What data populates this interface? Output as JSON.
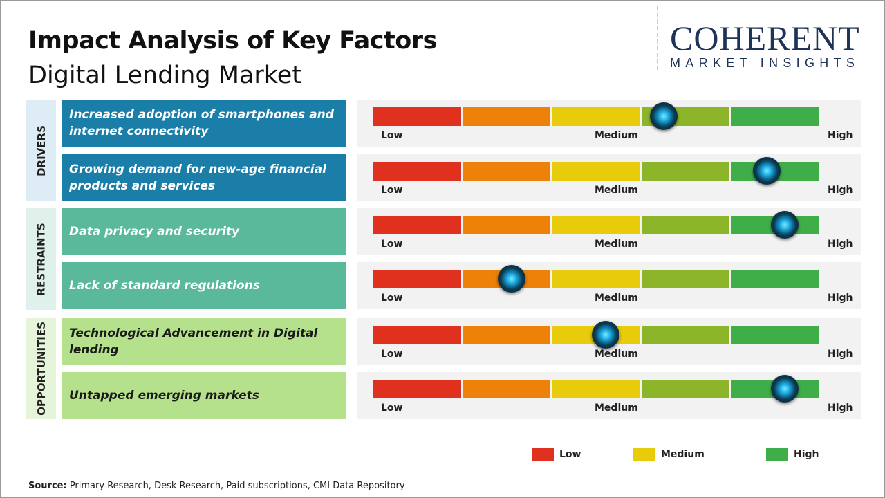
{
  "title": "Impact Analysis of Key Factors",
  "subtitle": "Digital Lending Market",
  "logo": {
    "main": "COHERENT",
    "sub": "MARKET INSIGHTS"
  },
  "scale_labels": {
    "low": "Low",
    "medium": "Medium",
    "high": "High"
  },
  "segment_colors": [
    "#e0301e",
    "#ee8208",
    "#e8cc0c",
    "#8cb52a",
    "#3fae48"
  ],
  "categories": [
    {
      "label": "DRIVERS",
      "label_bg": "#deedf5",
      "box_color": "#1b7ea8",
      "text_color": "#ffffff"
    },
    {
      "label": "RESTRAINTS",
      "label_bg": "#e0f0ea",
      "box_color": "#5bb99b",
      "text_color": "#ffffff"
    },
    {
      "label": "OPPORTUNITIES",
      "label_bg": "#e6f4da",
      "box_color": "#b6e18c",
      "text_color": "#1a1a1a"
    }
  ],
  "chart_data": {
    "type": "gauge",
    "scale": "Low to High",
    "factors": [
      {
        "category": "DRIVERS",
        "name": "Increased adoption of smartphones  and internet connectivity",
        "impact_percent": 65
      },
      {
        "category": "DRIVERS",
        "name": "Growing demand for new-age financial products and services",
        "impact_percent": 88
      },
      {
        "category": "RESTRAINTS",
        "name": "Data privacy and security",
        "impact_percent": 92
      },
      {
        "category": "RESTRAINTS",
        "name": "Lack of standard regulations",
        "impact_percent": 31
      },
      {
        "category": "OPPORTUNITIES",
        "name": "Technological Advancement in Digital lending",
        "impact_percent": 52
      },
      {
        "category": "OPPORTUNITIES",
        "name": "Untapped emerging markets",
        "impact_percent": 92
      }
    ]
  },
  "legend": [
    {
      "label": "Low",
      "color": "#e0301e"
    },
    {
      "label": "Medium",
      "color": "#e8cc0c"
    },
    {
      "label": "High",
      "color": "#3fae48"
    }
  ],
  "source": {
    "label": "Source:",
    "text": " Primary Research, Desk Research, Paid subscriptions, CMI Data Repository"
  }
}
